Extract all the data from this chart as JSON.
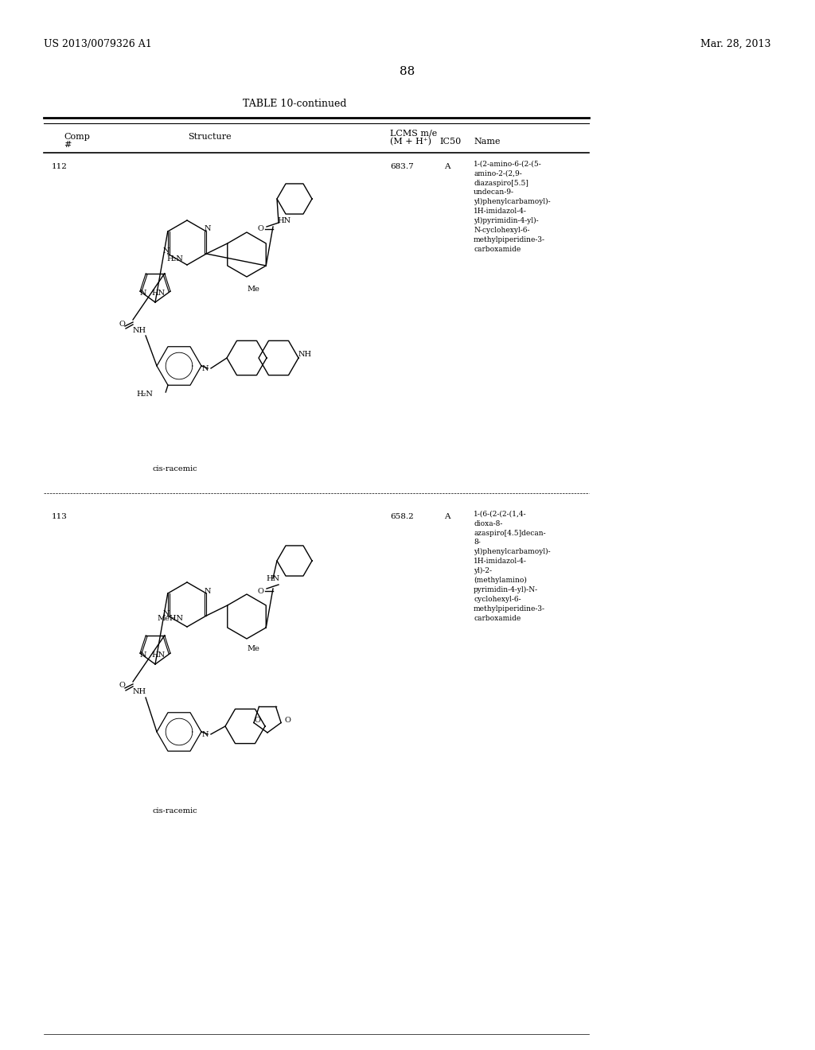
{
  "background_color": "#ffffff",
  "page_header_left": "US 2013/0079326 A1",
  "page_header_right": "Mar. 28, 2013",
  "page_number": "88",
  "table_title": "TABLE 10-continued",
  "col_headers": {
    "comp_hash": "Comp\n#",
    "structure": "Structure",
    "lcms": "LCMS m/e\n(M + H⁺)",
    "ic50": "IC50",
    "name": "Name"
  },
  "row1": {
    "comp_num": "112",
    "lcms_val": "683.7",
    "ic50_val": "A",
    "name_text": "1-(2-amino-6-(2-(5-\namino-2-(2,9-\ndiazaspiro[5.5]\nundecan-9-\nyl)phenylcarbamoyl)-\n1H-imidazol-4-\nyl)pyrimidin-4-yl)-\nN-cyclohexyl-6-\nmethylpiperidine-3-\ncarboxamide",
    "stereo": "cis-racemic"
  },
  "row2": {
    "comp_num": "113",
    "lcms_val": "658.2",
    "ic50_val": "A",
    "name_text": "1-(6-(2-(2-(1,4-\ndioxa-8-\nazaspiro[4.5]decan-\n8-\nyl)phenylcarbamoyl)-\n1H-imidazol-4-\nyl)-2-\n(methylamino)\npyrimidin-4-yl)-N-\ncyclohexyl-6-\nmethylpiperidine-3-\ncarboxamide",
    "stereo": "cis-racemic"
  },
  "font_size_header": 8,
  "font_size_body": 7.5,
  "font_size_title": 9,
  "font_size_page": 9,
  "line_color": "#000000",
  "text_color": "#000000"
}
